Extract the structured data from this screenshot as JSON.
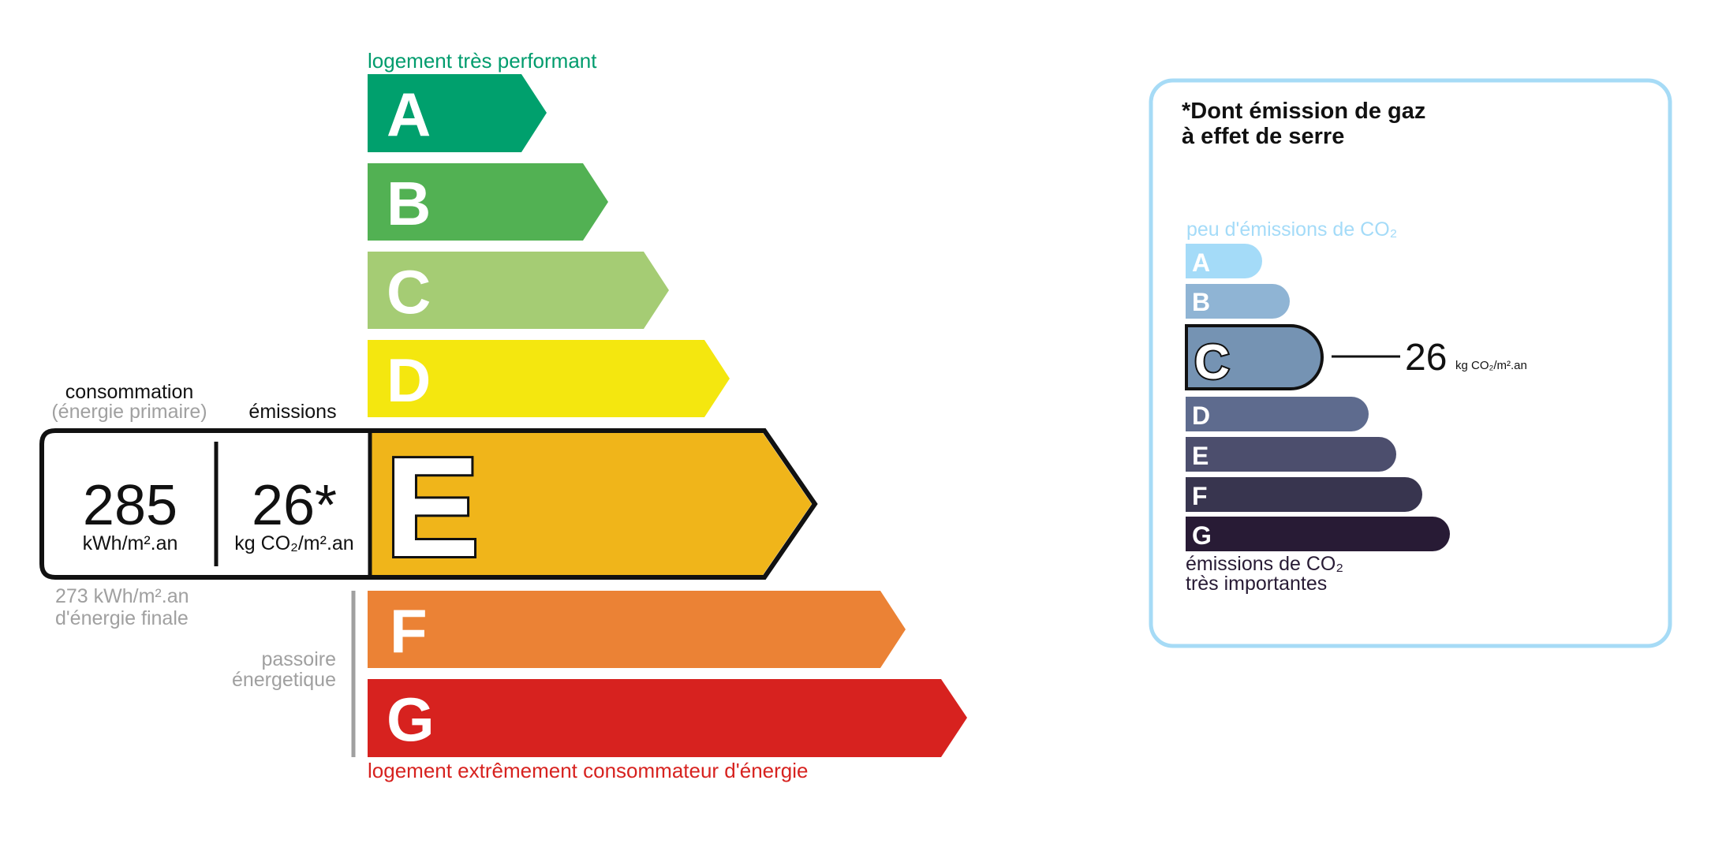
{
  "dpe": {
    "top_label": "logement très performant",
    "bottom_label": "logement extrêmement consommateur d'énergie",
    "classes": [
      {
        "letter": "A",
        "color": "#00a06d"
      },
      {
        "letter": "B",
        "color": "#52b153"
      },
      {
        "letter": "C",
        "color": "#a5cc74"
      },
      {
        "letter": "D",
        "color": "#f4e70f"
      },
      {
        "letter": "E",
        "color": "#f0b51a"
      },
      {
        "letter": "F",
        "color": "#eb8235"
      },
      {
        "letter": "G",
        "color": "#d7221f"
      }
    ],
    "current_class": "E",
    "consumption_label": "consommation",
    "consumption_sublabel": "(énergie primaire)",
    "emissions_label": "émissions",
    "consumption_value": "285",
    "consumption_unit": "kWh/m².an",
    "emissions_value": "26*",
    "emissions_unit": "kg CO₂/m².an",
    "final_energy_value": "273 kWh/m².an",
    "final_energy_label": "d'énergie finale",
    "passoire_line1": "passoire",
    "passoire_line2": "énergetique"
  },
  "ges": {
    "title_line1": "*Dont émission de gaz",
    "title_line2": "à effet de serre",
    "top_label": "peu d'émissions de CO₂",
    "bottom_label_line1": "émissions de CO₂",
    "bottom_label_line2": "très importantes",
    "classes": [
      {
        "letter": "A",
        "color": "#a4dbf8"
      },
      {
        "letter": "B",
        "color": "#8fb4d4"
      },
      {
        "letter": "C",
        "color": "#7593b3"
      },
      {
        "letter": "D",
        "color": "#5e6b8e"
      },
      {
        "letter": "E",
        "color": "#4c4e6d"
      },
      {
        "letter": "F",
        "color": "#38354f"
      },
      {
        "letter": "G",
        "color": "#281b35"
      }
    ],
    "current_class": "C",
    "value": "26",
    "unit": "kg CO₂/m².an",
    "border_color": "#a6dbf6"
  }
}
